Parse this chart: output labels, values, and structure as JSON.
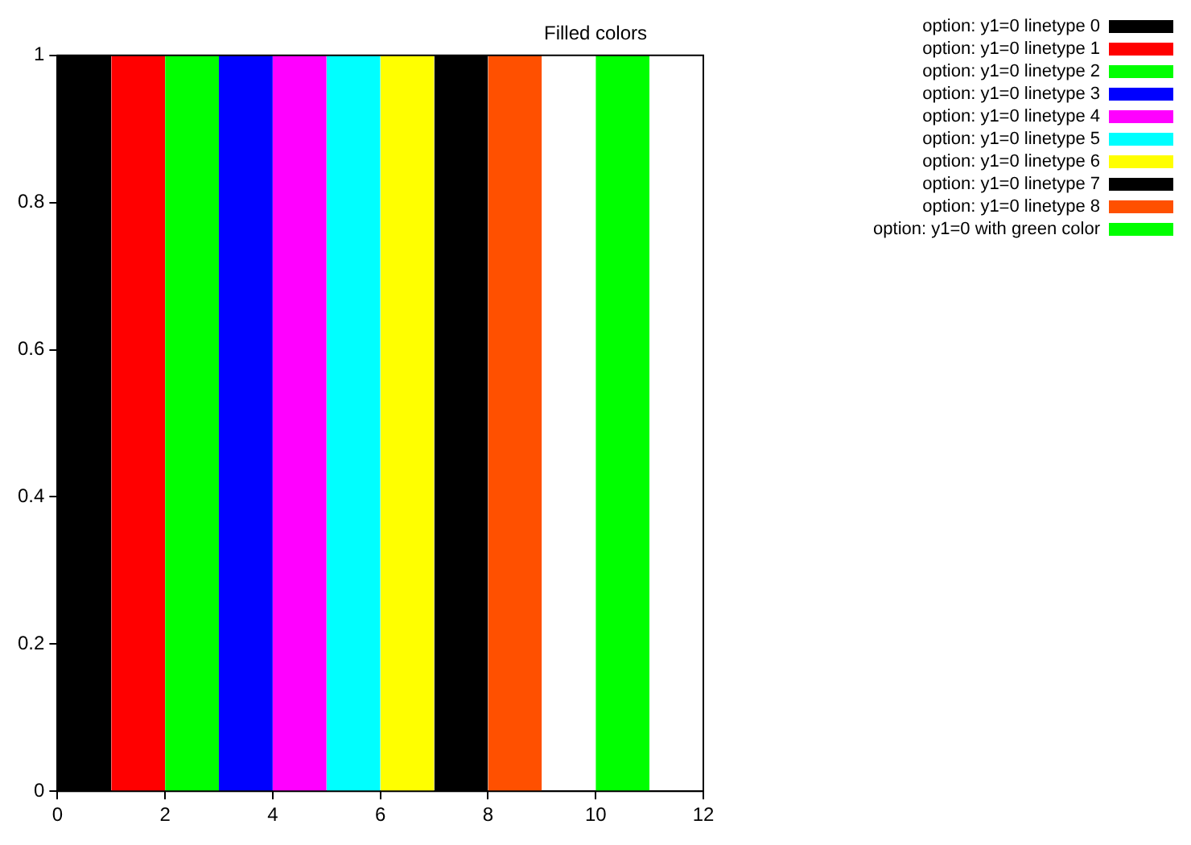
{
  "chart_data": {
    "type": "area",
    "title": "Filled colors",
    "xlim": [
      0,
      12
    ],
    "xticks": [
      0,
      2,
      4,
      6,
      8,
      10,
      12
    ],
    "ylim": [
      0,
      1
    ],
    "yticks": [
      0,
      0.2,
      0.4,
      0.6,
      0.8,
      1
    ],
    "grid": false,
    "legend": "top right",
    "marker": "none",
    "series": [
      {
        "name": "option: y1=0 linetype 0",
        "color": "#000000",
        "x": [
          0,
          1
        ],
        "values": [
          1,
          1
        ]
      },
      {
        "name": "option: y1=0 linetype 1",
        "color": "#ff0000",
        "x": [
          1,
          2
        ],
        "values": [
          1,
          1
        ]
      },
      {
        "name": "option: y1=0 linetype 2",
        "color": "#00ff00",
        "x": [
          2,
          3
        ],
        "values": [
          1,
          1
        ]
      },
      {
        "name": "option: y1=0 linetype 3",
        "color": "#0000ff",
        "x": [
          3,
          4
        ],
        "values": [
          1,
          1
        ]
      },
      {
        "name": "option: y1=0 linetype 4",
        "color": "#ff00ff",
        "x": [
          4,
          5
        ],
        "values": [
          1,
          1
        ]
      },
      {
        "name": "option: y1=0 linetype 5",
        "color": "#00ffff",
        "x": [
          5,
          6
        ],
        "values": [
          1,
          1
        ]
      },
      {
        "name": "option: y1=0 linetype 6",
        "color": "#ffff00",
        "x": [
          6,
          7
        ],
        "values": [
          1,
          1
        ]
      },
      {
        "name": "option: y1=0 linetype 7",
        "color": "#000000",
        "x": [
          7,
          8
        ],
        "values": [
          1,
          1
        ]
      },
      {
        "name": "option: y1=0 linetype 8",
        "color": "#ff5000",
        "x": [
          8,
          9
        ],
        "values": [
          1,
          1
        ]
      },
      {
        "name": "option: y1=0 with green color",
        "color": "#00ff00",
        "x": [
          10,
          11
        ],
        "values": [
          1,
          1
        ]
      }
    ]
  }
}
